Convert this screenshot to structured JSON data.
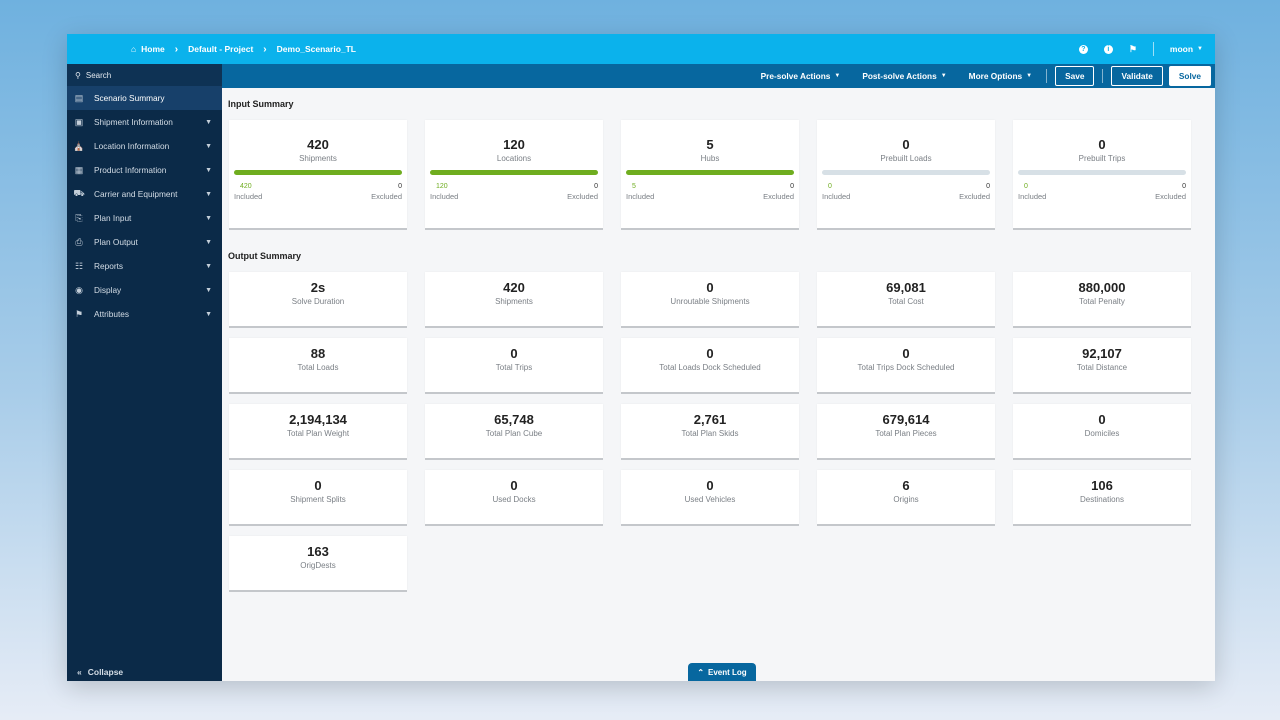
{
  "breadcrumb": {
    "items": [
      "Home",
      "Default - Project",
      "Demo_Scenario_TL"
    ]
  },
  "topbar": {
    "user": "moon",
    "icons": [
      "help-icon",
      "info-icon",
      "bell-icon"
    ]
  },
  "sidebar": {
    "search_label": "Search",
    "items": [
      {
        "label": "Scenario Summary",
        "icon": "chart-icon",
        "active": true
      },
      {
        "label": "Shipment Information",
        "icon": "box-icon"
      },
      {
        "label": "Location Information",
        "icon": "warehouse-icon"
      },
      {
        "label": "Product Information",
        "icon": "products-icon"
      },
      {
        "label": "Carrier and Equipment",
        "icon": "truck-icon"
      },
      {
        "label": "Plan Input",
        "icon": "plan-input-icon"
      },
      {
        "label": "Plan Output",
        "icon": "plan-output-icon"
      },
      {
        "label": "Reports",
        "icon": "report-icon"
      },
      {
        "label": "Display",
        "icon": "globe-icon"
      },
      {
        "label": "Attributes",
        "icon": "tags-icon"
      }
    ],
    "collapse_label": "Collapse"
  },
  "actionbar": {
    "pre_solve": "Pre-solve Actions",
    "post_solve": "Post-solve Actions",
    "more": "More Options",
    "save": "Save",
    "validate": "Validate",
    "solve": "Solve"
  },
  "input_summary": {
    "title": "Input Summary",
    "included_label": "Included",
    "excluded_label": "Excluded",
    "cards": [
      {
        "value": "420",
        "label": "Shipments",
        "included": "420",
        "excluded": "0",
        "fill": 1
      },
      {
        "value": "120",
        "label": "Locations",
        "included": "120",
        "excluded": "0",
        "fill": 1
      },
      {
        "value": "5",
        "label": "Hubs",
        "included": "5",
        "excluded": "0",
        "fill": 1
      },
      {
        "value": "0",
        "label": "Prebuilt Loads",
        "included": "0",
        "excluded": "0",
        "fill": 0
      },
      {
        "value": "0",
        "label": "Prebuilt Trips",
        "included": "0",
        "excluded": "0",
        "fill": 0
      }
    ]
  },
  "output_summary": {
    "title": "Output Summary",
    "cards": [
      {
        "value": "2s",
        "label": "Solve Duration"
      },
      {
        "value": "420",
        "label": "Shipments"
      },
      {
        "value": "0",
        "label": "Unroutable Shipments"
      },
      {
        "value": "69,081",
        "label": "Total Cost"
      },
      {
        "value": "880,000",
        "label": "Total Penalty"
      },
      {
        "value": "88",
        "label": "Total Loads"
      },
      {
        "value": "0",
        "label": "Total Trips"
      },
      {
        "value": "0",
        "label": "Total Loads Dock Scheduled"
      },
      {
        "value": "0",
        "label": "Total Trips Dock Scheduled"
      },
      {
        "value": "92,107",
        "label": "Total Distance"
      },
      {
        "value": "2,194,134",
        "label": "Total Plan Weight"
      },
      {
        "value": "65,748",
        "label": "Total Plan Cube"
      },
      {
        "value": "2,761",
        "label": "Total Plan Skids"
      },
      {
        "value": "679,614",
        "label": "Total Plan Pieces"
      },
      {
        "value": "0",
        "label": "Domiciles"
      },
      {
        "value": "0",
        "label": "Shipment Splits"
      },
      {
        "value": "0",
        "label": "Used Docks"
      },
      {
        "value": "0",
        "label": "Used Vehicles"
      },
      {
        "value": "6",
        "label": "Origins"
      },
      {
        "value": "106",
        "label": "Destinations"
      },
      {
        "value": "163",
        "label": "OrigDests"
      }
    ]
  },
  "event_log_label": "Event Log"
}
